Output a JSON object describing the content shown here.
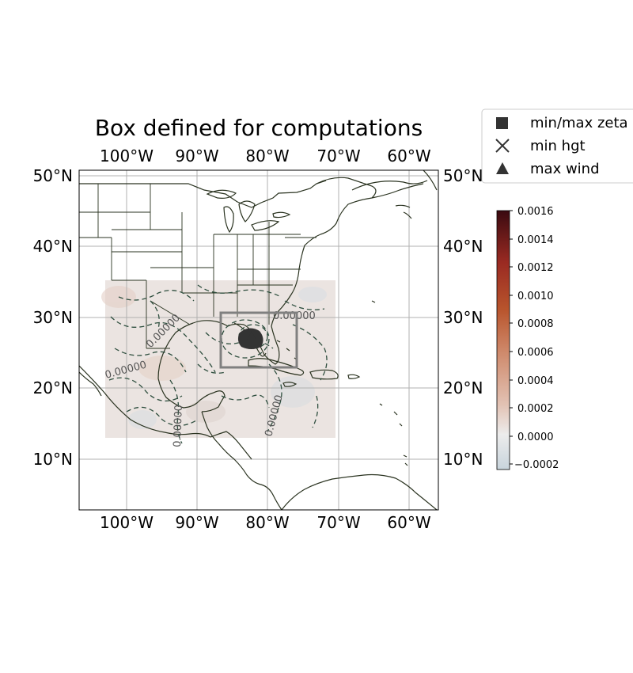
{
  "title": "Box defined for computations",
  "map": {
    "lon_range": [
      -107,
      -56
    ],
    "lat_range": [
      3,
      51
    ],
    "grid": true,
    "x_ticks": [
      "100°W",
      "90°W",
      "80°W",
      "70°W",
      "60°W"
    ],
    "x_tick_values": [
      -100,
      -90,
      -80,
      -70,
      -60
    ],
    "y_ticks": [
      "50°N",
      "40°N",
      "30°N",
      "20°N",
      "10°N"
    ],
    "y_tick_values": [
      50,
      40,
      30,
      20,
      10
    ],
    "data_region": {
      "lon": [
        -103.3,
        -70.5
      ],
      "lat": [
        13,
        35.2
      ]
    },
    "computation_box": {
      "lon": [
        -87,
        -76.2
      ],
      "lat": [
        23,
        30.8
      ]
    },
    "storm_center": {
      "lon": -82.5,
      "lat": 27.5
    },
    "contour_labels": [
      "0.00000",
      "0.00000",
      "0.00000",
      "0.00000",
      "0.00000"
    ],
    "colors": {
      "box": "#808080",
      "contour": "#2f4f3f",
      "coast": "#2a3320",
      "marker": "#333333"
    }
  },
  "legend": {
    "entries": [
      {
        "label": "min/max zeta",
        "marker": "square"
      },
      {
        "label": "min hgt",
        "marker": "x"
      },
      {
        "label": "max wind",
        "marker": "triangle"
      }
    ]
  },
  "colorbar": {
    "min": -0.00025,
    "max": 0.0016,
    "ticks": [
      "0.0016",
      "0.0014",
      "0.0012",
      "0.0010",
      "0.0008",
      "0.0006",
      "0.0004",
      "0.0002",
      "0.0000",
      "−0.0002"
    ],
    "tick_values": [
      0.0016,
      0.0014,
      0.0012,
      0.001,
      0.0008,
      0.0006,
      0.0004,
      0.0002,
      0.0,
      -0.0002
    ],
    "colormap": [
      "#c8d4dc",
      "#ececec",
      "#e2c2b4",
      "#cf8a6c",
      "#b8542c",
      "#9a2a22",
      "#3a0a10"
    ]
  }
}
